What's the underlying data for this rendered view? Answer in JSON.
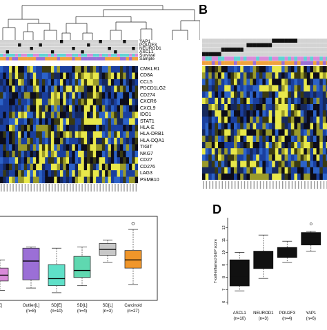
{
  "panels": {
    "b_label": "B",
    "d_label": "D"
  },
  "heatmap_a": {
    "annotation_rows": [
      "YAP1",
      "POU2F3",
      "NEUROD1",
      "ASCL1",
      "Survival",
      "Sample"
    ],
    "genes": [
      "CMKLR1",
      "CD8A",
      "CCL5",
      "PDCD1LG2",
      "CD274",
      "CXCR6",
      "CXCL9",
      "IDO1",
      "STAT1",
      "HLA-E",
      "HLA-DRB1",
      "HLA-DQA1",
      "TIGIT",
      "NKG7",
      "CD27",
      "CD276",
      "LAG3",
      "PSMB10"
    ]
  },
  "colors": {
    "heat_low": "#1a3f9e",
    "heat_mid": "#0c0c1a",
    "heat_high": "#e8e84a",
    "annot_gray": "#d3d3d3",
    "annot_black": "#111111",
    "sample_purple": "#9b6fd6",
    "sample_orange": "#f0a23c",
    "survival_cyan": "#5fd3d3",
    "survival_pink": "#d98ad9"
  },
  "chart_data": [
    {
      "type": "box",
      "panel": "C",
      "categories": [
        "E]",
        "Outlier[L]",
        "SD[E]",
        "SD[L]",
        "SD[L]",
        "Carcinoid"
      ],
      "counts": [
        "",
        "(n=8)",
        "(n=10)",
        "(n=4)",
        "(n=3)",
        "(n=27)"
      ],
      "colors": [
        "#d98ad9",
        "#9b6fd6",
        "#5fe0c8",
        "#5fd8b0",
        "#c8c8c8",
        "#f0962a"
      ],
      "boxes": [
        {
          "whisker_low": 2.0,
          "q1": 2.8,
          "median": 3.3,
          "q3": 3.9,
          "whisker_high": 4.6,
          "outliers": []
        },
        {
          "whisker_low": 2.2,
          "q1": 2.9,
          "median": 4.5,
          "q3": 5.6,
          "whisker_high": 5.7,
          "outliers": []
        },
        {
          "whisker_low": 1.8,
          "q1": 2.4,
          "median": 3.0,
          "q3": 4.2,
          "whisker_high": 5.6,
          "outliers": []
        },
        {
          "whisker_low": 2.4,
          "q1": 3.1,
          "median": 3.7,
          "q3": 4.9,
          "whisker_high": 5.7,
          "outliers": []
        },
        {
          "whisker_low": 4.4,
          "q1": 5.0,
          "median": 5.5,
          "q3": 6.0,
          "whisker_high": 6.3,
          "outliers": []
        },
        {
          "whisker_low": 2.5,
          "q1": 3.9,
          "median": 4.6,
          "q3": 5.4,
          "whisker_high": 7.2,
          "outliers": [
            7.7
          ]
        }
      ],
      "ylim": [
        1.5,
        8.2
      ]
    },
    {
      "type": "box",
      "panel": "D",
      "categories": [
        "ASCL1",
        "NEUROD1",
        "POU2F3",
        "YAP1"
      ],
      "counts": [
        "(n=10)",
        "(n=3)",
        "(n=4)",
        "(n=6)"
      ],
      "ylabel": "T-cell-inflamed GEP score",
      "yticks": [
        6,
        7,
        8,
        9,
        10,
        11,
        12
      ],
      "ylim": [
        5.8,
        12.8
      ],
      "boxes": [
        {
          "whisker_low": 6.9,
          "q1": 7.3,
          "median": 8.1,
          "q3": 9.4,
          "whisker_high": 10.0,
          "outliers": []
        },
        {
          "whisker_low": 7.9,
          "q1": 8.7,
          "median": 9.3,
          "q3": 10.1,
          "whisker_high": 11.4,
          "outliers": []
        },
        {
          "whisker_low": 9.2,
          "q1": 9.6,
          "median": 9.7,
          "q3": 10.4,
          "whisker_high": 10.9,
          "outliers": []
        },
        {
          "whisker_low": 10.1,
          "q1": 10.6,
          "median": 11.2,
          "q3": 11.6,
          "whisker_high": 11.7,
          "outliers": [
            12.3
          ]
        }
      ]
    }
  ]
}
